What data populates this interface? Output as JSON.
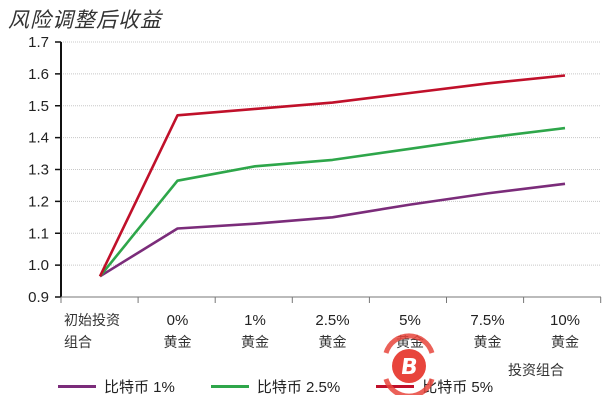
{
  "chart_data": {
    "type": "line",
    "title": "风险调整后收益",
    "xlabel": "投资组合",
    "ylabel": "",
    "ylim": [
      0.9,
      1.7
    ],
    "yticks": [
      "1.7",
      "1.6",
      "1.5",
      "1.4",
      "1.3",
      "1.2",
      "1.1",
      "1.0",
      "0.9"
    ],
    "grid": true,
    "legend_position": "bottom",
    "categories": [
      "初始投资组合",
      "0% 黄金",
      "1% 黄金",
      "2.5% 黄金",
      "5% 黄金",
      "7.5% 黄金",
      "10% 黄金"
    ],
    "series": [
      {
        "name": "比特币 1%",
        "color": "#7B2C7A",
        "values": [
          0.965,
          1.115,
          1.13,
          1.15,
          1.19,
          1.225,
          1.255
        ]
      },
      {
        "name": "比特币 2.5%",
        "color": "#2EA64A",
        "values": [
          0.965,
          1.265,
          1.31,
          1.33,
          1.365,
          1.4,
          1.43
        ]
      },
      {
        "name": "比特币 5%",
        "color": "#C0102A",
        "values": [
          0.965,
          1.47,
          1.49,
          1.51,
          1.54,
          1.57,
          1.595
        ]
      }
    ]
  },
  "title": "风险调整后收益",
  "xaxis": {
    "title": "投资组合",
    "labels": [
      {
        "top": "初始投资",
        "bottom": "组合"
      },
      {
        "top": "0%",
        "bottom": "黄金"
      },
      {
        "top": "1%",
        "bottom": "黄金"
      },
      {
        "top": "2.5%",
        "bottom": "黄金"
      },
      {
        "top": "5%",
        "bottom": "黄金"
      },
      {
        "top": "7.5%",
        "bottom": "黄金"
      },
      {
        "top": "10%",
        "bottom": "黄金"
      }
    ]
  },
  "legend": [
    {
      "label": "比特币  1%",
      "color": "#7B2C7A"
    },
    {
      "label": "比特币  2.5%",
      "color": "#2EA64A"
    },
    {
      "label": "比特币  5%",
      "color": "#C0102A"
    }
  ],
  "watermark": {
    "icon": "bitcoin-logo-icon",
    "color": "#E8453C"
  }
}
